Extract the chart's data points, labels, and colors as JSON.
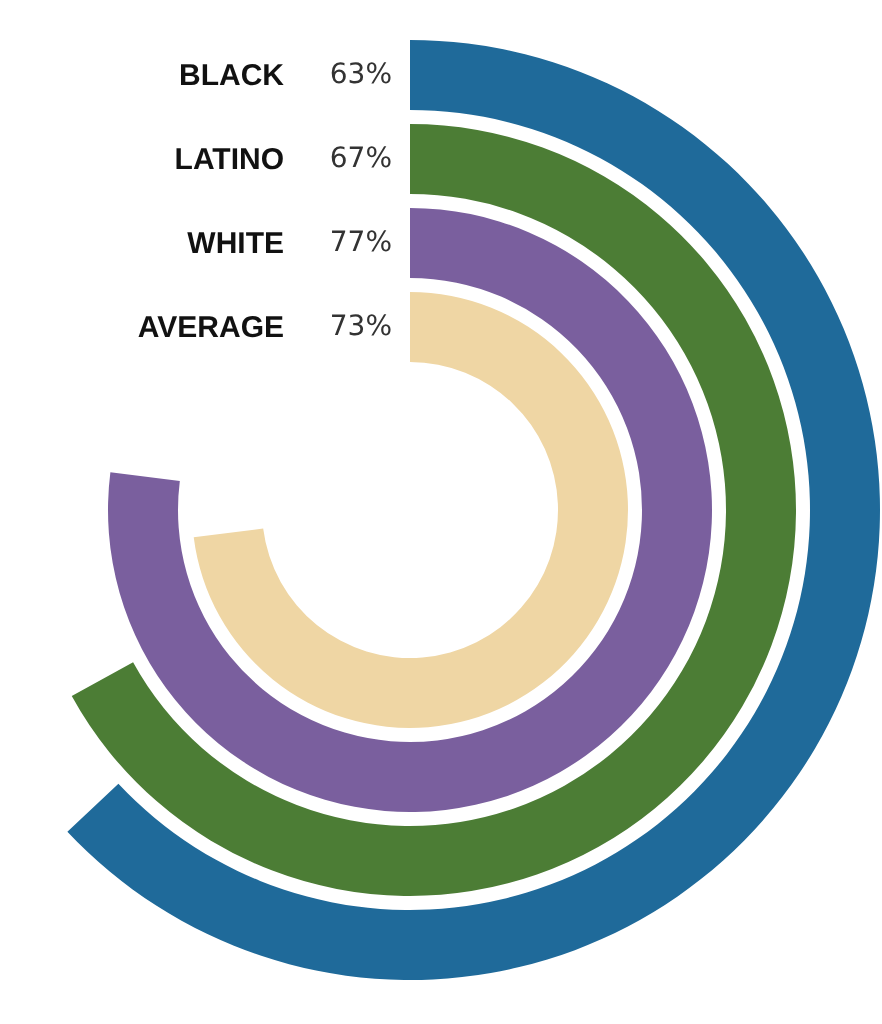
{
  "chart_data": {
    "type": "other",
    "categories": [
      "BLACK",
      "LATINO",
      "WHITE",
      "AVERAGE"
    ],
    "values": [
      63,
      67,
      77,
      73
    ],
    "colors": [
      "#1f6a9a",
      "#4c7d35",
      "#7a5f9e",
      "#efd6a4"
    ],
    "value_labels": [
      "63%",
      "67%",
      "77%",
      "73%"
    ],
    "data_labels": true
  }
}
